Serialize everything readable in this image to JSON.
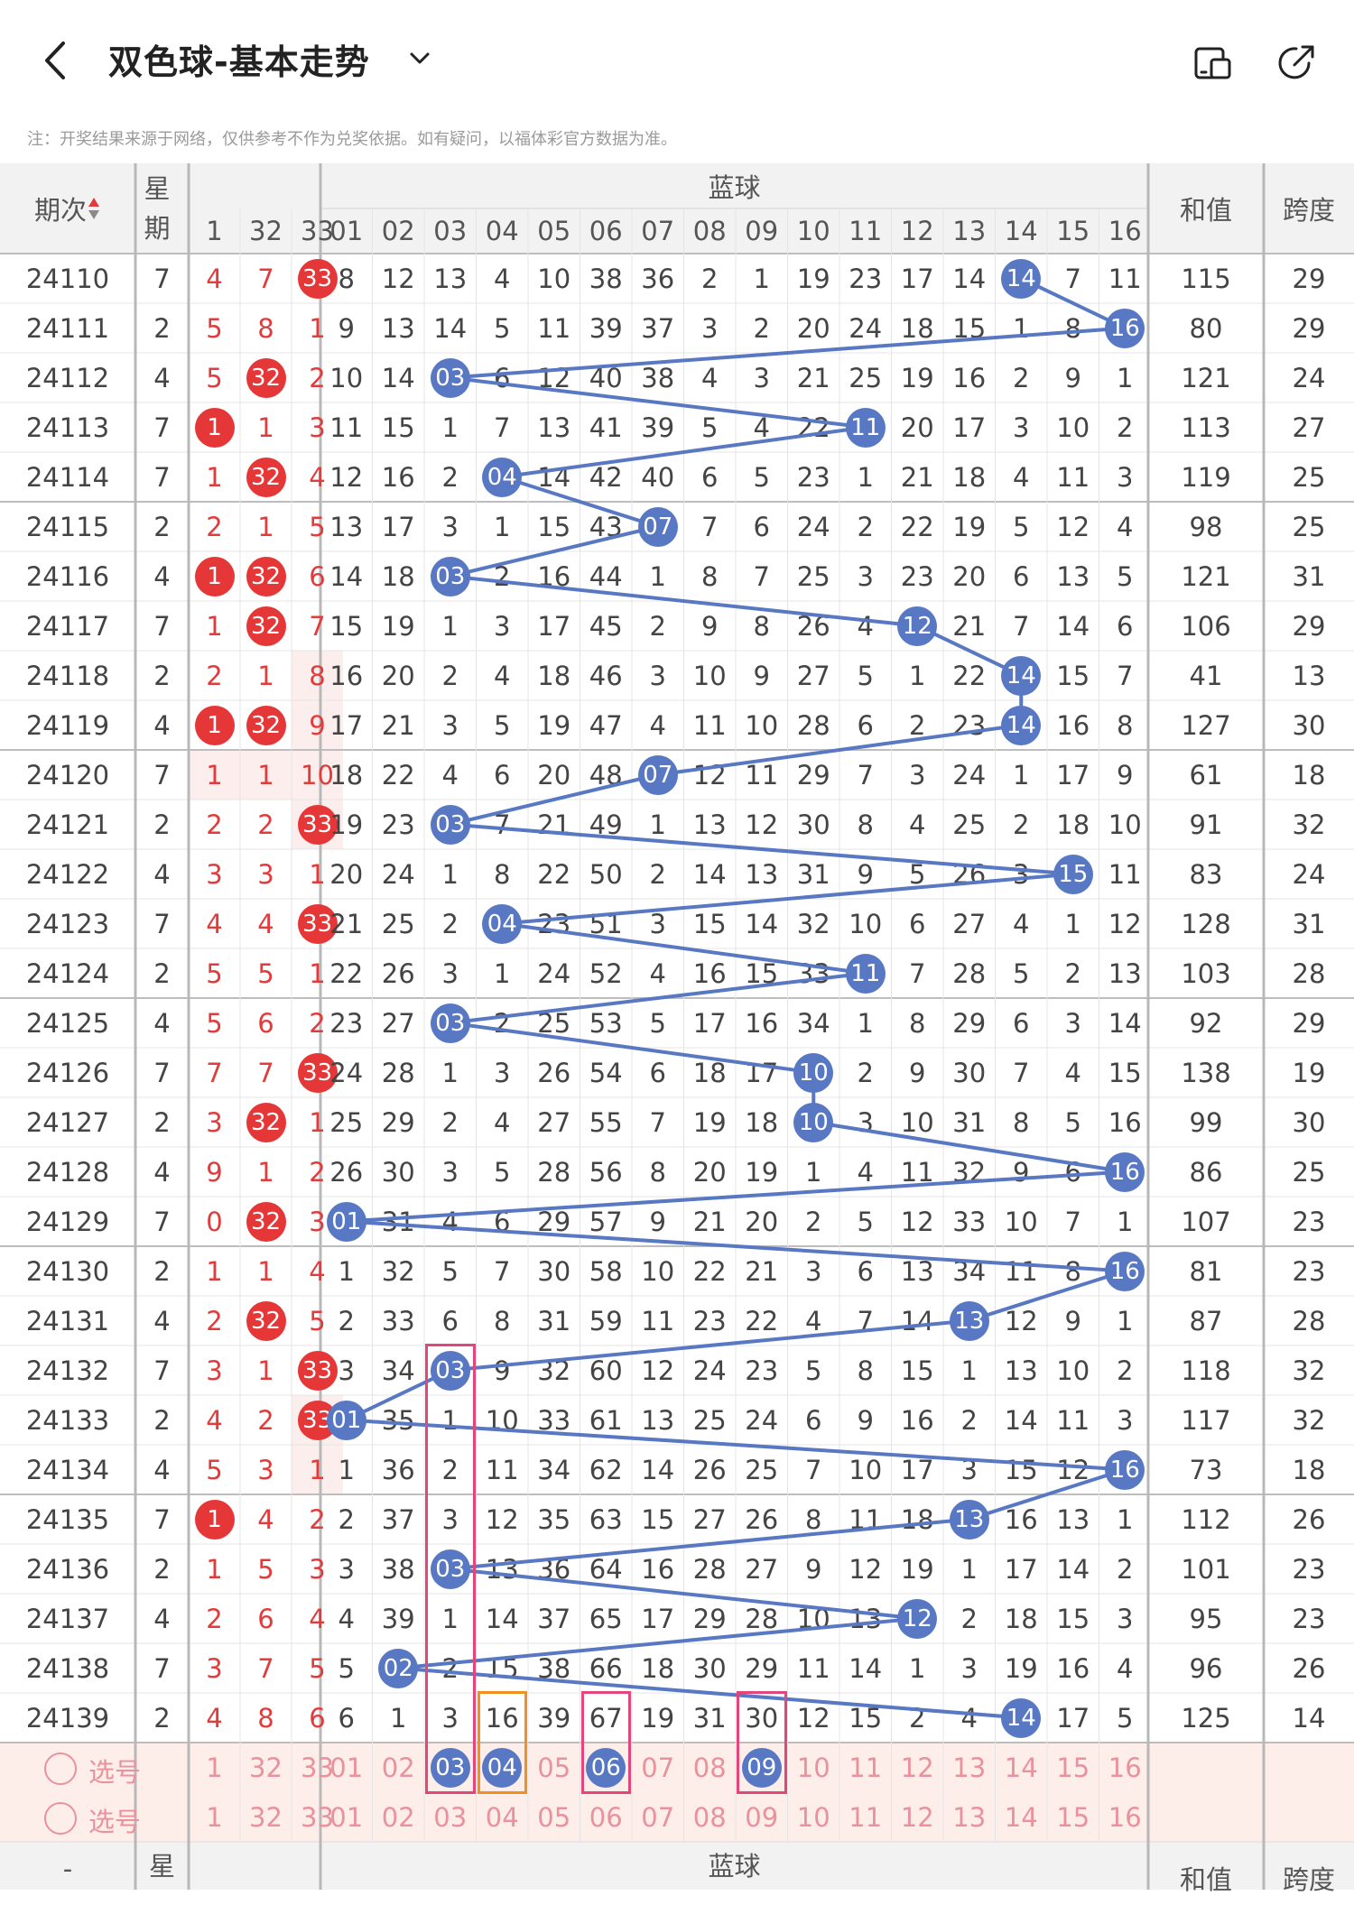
{
  "header": {
    "title": "双色球-基本走势",
    "notice": "注：开奖结果来源于网络，仅供参考不作为兑奖依据。如有疑问，以福体彩官方数据为准。"
  },
  "icons": {
    "back": "back-arrow-icon",
    "dropdown": "chevron-down-icon",
    "layout": "layout-toggle-icon",
    "share": "share-icon"
  },
  "colors": {
    "red_ball": "#e53737",
    "blue_ball": "#5878c4",
    "pink_highlight": "#e2467a",
    "orange_highlight": "#f0901e",
    "selection_row_bg": "#fdeee9"
  },
  "table": {
    "header": {
      "period": "期次",
      "week": "星期",
      "blue_group": "蓝球",
      "sum": "和值",
      "span": "跨度",
      "red_cols": [
        "1",
        "32",
        "33"
      ],
      "blue_cols": [
        "01",
        "02",
        "03",
        "04",
        "05",
        "06",
        "07",
        "08",
        "09",
        "10",
        "11",
        "12",
        "13",
        "14",
        "15",
        "16"
      ]
    },
    "footer_header": {
      "period": "-",
      "week": "星",
      "blue_group": "蓝球",
      "sum": "和值",
      "span": "跨度"
    },
    "rows": [
      {
        "period": "24110",
        "week": "7",
        "red": [
          "4",
          "7",
          "33"
        ],
        "red_hit": [
          false,
          false,
          true
        ],
        "blue": [
          "8",
          "12",
          "13",
          "4",
          "10",
          "38",
          "36",
          "2",
          "1",
          "19",
          "23",
          "17",
          "14",
          "14",
          "7",
          "11"
        ],
        "blue_hit": 14,
        "sum": "115",
        "span": "29"
      },
      {
        "period": "24111",
        "week": "2",
        "red": [
          "5",
          "8",
          "1"
        ],
        "red_hit": [
          false,
          false,
          false
        ],
        "blue": [
          "9",
          "13",
          "14",
          "5",
          "11",
          "39",
          "37",
          "3",
          "2",
          "20",
          "24",
          "18",
          "15",
          "1",
          "8",
          "16"
        ],
        "blue_hit": 16,
        "sum": "80",
        "span": "29"
      },
      {
        "period": "24112",
        "week": "4",
        "red": [
          "5",
          "32",
          "2"
        ],
        "red_hit": [
          false,
          true,
          false
        ],
        "blue": [
          "10",
          "14",
          "03",
          "6",
          "12",
          "40",
          "38",
          "4",
          "3",
          "21",
          "25",
          "19",
          "16",
          "2",
          "9",
          "1"
        ],
        "blue_hit": 3,
        "sum": "121",
        "span": "24"
      },
      {
        "period": "24113",
        "week": "7",
        "red": [
          "1",
          "1",
          "3"
        ],
        "red_hit": [
          true,
          false,
          false
        ],
        "blue": [
          "11",
          "15",
          "1",
          "7",
          "13",
          "41",
          "39",
          "5",
          "4",
          "22",
          "11",
          "20",
          "17",
          "3",
          "10",
          "2"
        ],
        "blue_hit": 11,
        "sum": "113",
        "span": "27"
      },
      {
        "period": "24114",
        "week": "7",
        "red": [
          "1",
          "32",
          "4"
        ],
        "red_hit": [
          false,
          true,
          false
        ],
        "blue": [
          "12",
          "16",
          "2",
          "04",
          "14",
          "42",
          "40",
          "6",
          "5",
          "23",
          "1",
          "21",
          "18",
          "4",
          "11",
          "3"
        ],
        "blue_hit": 4,
        "sum": "119",
        "span": "25"
      },
      {
        "period": "24115",
        "week": "2",
        "red": [
          "2",
          "1",
          "5"
        ],
        "red_hit": [
          false,
          false,
          false
        ],
        "blue": [
          "13",
          "17",
          "3",
          "1",
          "15",
          "43",
          "07",
          "7",
          "6",
          "24",
          "2",
          "22",
          "19",
          "5",
          "12",
          "4"
        ],
        "blue_hit": 7,
        "sum": "98",
        "span": "25"
      },
      {
        "period": "24116",
        "week": "4",
        "red": [
          "1",
          "32",
          "6"
        ],
        "red_hit": [
          true,
          true,
          false
        ],
        "blue": [
          "14",
          "18",
          "03",
          "2",
          "16",
          "44",
          "1",
          "8",
          "7",
          "25",
          "3",
          "23",
          "20",
          "6",
          "13",
          "5"
        ],
        "blue_hit": 3,
        "sum": "121",
        "span": "31"
      },
      {
        "period": "24117",
        "week": "7",
        "red": [
          "1",
          "32",
          "7"
        ],
        "red_hit": [
          false,
          true,
          false
        ],
        "blue": [
          "15",
          "19",
          "1",
          "3",
          "17",
          "45",
          "2",
          "9",
          "8",
          "26",
          "4",
          "12",
          "21",
          "7",
          "14",
          "6"
        ],
        "blue_hit": 12,
        "sum": "106",
        "span": "29"
      },
      {
        "period": "24118",
        "week": "2",
        "red": [
          "2",
          "1",
          "8"
        ],
        "red_hit": [
          false,
          false,
          false
        ],
        "blue": [
          "16",
          "20",
          "2",
          "4",
          "18",
          "46",
          "3",
          "10",
          "9",
          "27",
          "5",
          "1",
          "22",
          "14",
          "15",
          "7"
        ],
        "blue_hit": 14,
        "sum": "41",
        "span": "13"
      },
      {
        "period": "24119",
        "week": "4",
        "red": [
          "1",
          "32",
          "9"
        ],
        "red_hit": [
          true,
          true,
          false
        ],
        "blue": [
          "17",
          "21",
          "3",
          "5",
          "19",
          "47",
          "4",
          "11",
          "10",
          "28",
          "6",
          "2",
          "23",
          "14",
          "16",
          "8"
        ],
        "blue_hit": 14,
        "sum": "127",
        "span": "30"
      },
      {
        "period": "24120",
        "week": "7",
        "red": [
          "1",
          "1",
          "10"
        ],
        "red_hit": [
          false,
          false,
          false
        ],
        "blue": [
          "18",
          "22",
          "4",
          "6",
          "20",
          "48",
          "07",
          "12",
          "11",
          "29",
          "7",
          "3",
          "24",
          "1",
          "17",
          "9"
        ],
        "blue_hit": 7,
        "sum": "61",
        "span": "18"
      },
      {
        "period": "24121",
        "week": "2",
        "red": [
          "2",
          "2",
          "33"
        ],
        "red_hit": [
          false,
          false,
          true
        ],
        "blue": [
          "19",
          "23",
          "03",
          "7",
          "21",
          "49",
          "1",
          "13",
          "12",
          "30",
          "8",
          "4",
          "25",
          "2",
          "18",
          "10"
        ],
        "blue_hit": 3,
        "sum": "91",
        "span": "32"
      },
      {
        "period": "24122",
        "week": "4",
        "red": [
          "3",
          "3",
          "1"
        ],
        "red_hit": [
          false,
          false,
          false
        ],
        "blue": [
          "20",
          "24",
          "1",
          "8",
          "22",
          "50",
          "2",
          "14",
          "13",
          "31",
          "9",
          "5",
          "26",
          "3",
          "15",
          "11"
        ],
        "blue_hit": 15,
        "sum": "83",
        "span": "24"
      },
      {
        "period": "24123",
        "week": "7",
        "red": [
          "4",
          "4",
          "33"
        ],
        "red_hit": [
          false,
          false,
          true
        ],
        "blue": [
          "21",
          "25",
          "2",
          "04",
          "23",
          "51",
          "3",
          "15",
          "14",
          "32",
          "10",
          "6",
          "27",
          "4",
          "1",
          "12"
        ],
        "blue_hit": 4,
        "sum": "128",
        "span": "31"
      },
      {
        "period": "24124",
        "week": "2",
        "red": [
          "5",
          "5",
          "1"
        ],
        "red_hit": [
          false,
          false,
          false
        ],
        "blue": [
          "22",
          "26",
          "3",
          "1",
          "24",
          "52",
          "4",
          "16",
          "15",
          "33",
          "11",
          "7",
          "28",
          "5",
          "2",
          "13"
        ],
        "blue_hit": 11,
        "sum": "103",
        "span": "28"
      },
      {
        "period": "24125",
        "week": "4",
        "red": [
          "5",
          "6",
          "2"
        ],
        "red_hit": [
          false,
          false,
          false
        ],
        "blue": [
          "23",
          "27",
          "03",
          "2",
          "25",
          "53",
          "5",
          "17",
          "16",
          "34",
          "1",
          "8",
          "29",
          "6",
          "3",
          "14"
        ],
        "blue_hit": 3,
        "sum": "92",
        "span": "29"
      },
      {
        "period": "24126",
        "week": "7",
        "red": [
          "7",
          "7",
          "33"
        ],
        "red_hit": [
          false,
          false,
          true
        ],
        "blue": [
          "24",
          "28",
          "1",
          "3",
          "26",
          "54",
          "6",
          "18",
          "17",
          "10",
          "2",
          "9",
          "30",
          "7",
          "4",
          "15"
        ],
        "blue_hit": 10,
        "sum": "138",
        "span": "19"
      },
      {
        "period": "24127",
        "week": "2",
        "red": [
          "3",
          "32",
          "1"
        ],
        "red_hit": [
          false,
          true,
          false
        ],
        "blue": [
          "25",
          "29",
          "2",
          "4",
          "27",
          "55",
          "7",
          "19",
          "18",
          "10",
          "3",
          "10",
          "31",
          "8",
          "5",
          "16"
        ],
        "blue_hit": 10,
        "sum": "99",
        "span": "30"
      },
      {
        "period": "24128",
        "week": "4",
        "red": [
          "9",
          "1",
          "2"
        ],
        "red_hit": [
          false,
          false,
          false
        ],
        "blue": [
          "26",
          "30",
          "3",
          "5",
          "28",
          "56",
          "8",
          "20",
          "19",
          "1",
          "4",
          "11",
          "32",
          "9",
          "6",
          "16"
        ],
        "blue_hit": 16,
        "sum": "86",
        "span": "25"
      },
      {
        "period": "24129",
        "week": "7",
        "red": [
          "0",
          "32",
          "3"
        ],
        "red_hit": [
          false,
          true,
          false
        ],
        "blue": [
          "01",
          "31",
          "4",
          "6",
          "29",
          "57",
          "9",
          "21",
          "20",
          "2",
          "5",
          "12",
          "33",
          "10",
          "7",
          "1"
        ],
        "blue_hit": 1,
        "sum": "107",
        "span": "23"
      },
      {
        "period": "24130",
        "week": "2",
        "red": [
          "1",
          "1",
          "4"
        ],
        "red_hit": [
          false,
          false,
          false
        ],
        "blue": [
          "1",
          "32",
          "5",
          "7",
          "30",
          "58",
          "10",
          "22",
          "21",
          "3",
          "6",
          "13",
          "34",
          "11",
          "8",
          "16"
        ],
        "blue_hit": 16,
        "sum": "81",
        "span": "23"
      },
      {
        "period": "24131",
        "week": "4",
        "red": [
          "2",
          "32",
          "5"
        ],
        "red_hit": [
          false,
          true,
          false
        ],
        "blue": [
          "2",
          "33",
          "6",
          "8",
          "31",
          "59",
          "11",
          "23",
          "22",
          "4",
          "7",
          "14",
          "13",
          "12",
          "9",
          "1"
        ],
        "blue_hit": 13,
        "sum": "87",
        "span": "28"
      },
      {
        "period": "24132",
        "week": "7",
        "red": [
          "3",
          "1",
          "33"
        ],
        "red_hit": [
          false,
          false,
          true
        ],
        "blue": [
          "3",
          "34",
          "03",
          "9",
          "32",
          "60",
          "12",
          "24",
          "23",
          "5",
          "8",
          "15",
          "1",
          "13",
          "10",
          "2"
        ],
        "blue_hit": 3,
        "sum": "118",
        "span": "32"
      },
      {
        "period": "24133",
        "week": "2",
        "red": [
          "4",
          "2",
          "33"
        ],
        "red_hit": [
          false,
          false,
          true
        ],
        "blue": [
          "01",
          "35",
          "1",
          "10",
          "33",
          "61",
          "13",
          "25",
          "24",
          "6",
          "9",
          "16",
          "2",
          "14",
          "11",
          "3"
        ],
        "blue_hit": 1,
        "sum": "117",
        "span": "32"
      },
      {
        "period": "24134",
        "week": "4",
        "red": [
          "5",
          "3",
          "1"
        ],
        "red_hit": [
          false,
          false,
          false
        ],
        "blue": [
          "1",
          "36",
          "2",
          "11",
          "34",
          "62",
          "14",
          "26",
          "25",
          "7",
          "10",
          "17",
          "3",
          "15",
          "12",
          "16"
        ],
        "blue_hit": 16,
        "sum": "73",
        "span": "18"
      },
      {
        "period": "24135",
        "week": "7",
        "red": [
          "1",
          "4",
          "2"
        ],
        "red_hit": [
          true,
          false,
          false
        ],
        "blue": [
          "2",
          "37",
          "3",
          "12",
          "35",
          "63",
          "15",
          "27",
          "26",
          "8",
          "11",
          "18",
          "13",
          "16",
          "13",
          "1"
        ],
        "blue_hit": 13,
        "sum": "112",
        "span": "26"
      },
      {
        "period": "24136",
        "week": "2",
        "red": [
          "1",
          "5",
          "3"
        ],
        "red_hit": [
          false,
          false,
          false
        ],
        "blue": [
          "3",
          "38",
          "03",
          "13",
          "36",
          "64",
          "16",
          "28",
          "27",
          "9",
          "12",
          "19",
          "1",
          "17",
          "14",
          "2"
        ],
        "blue_hit": 3,
        "sum": "101",
        "span": "23"
      },
      {
        "period": "24137",
        "week": "4",
        "red": [
          "2",
          "6",
          "4"
        ],
        "red_hit": [
          false,
          false,
          false
        ],
        "blue": [
          "4",
          "39",
          "1",
          "14",
          "37",
          "65",
          "17",
          "29",
          "28",
          "10",
          "13",
          "12",
          "2",
          "18",
          "15",
          "3"
        ],
        "blue_hit": 12,
        "sum": "95",
        "span": "23"
      },
      {
        "period": "24138",
        "week": "7",
        "red": [
          "3",
          "7",
          "5"
        ],
        "red_hit": [
          false,
          false,
          false
        ],
        "blue": [
          "5",
          "02",
          "2",
          "15",
          "38",
          "66",
          "18",
          "30",
          "29",
          "11",
          "14",
          "1",
          "3",
          "19",
          "16",
          "4"
        ],
        "blue_hit": 2,
        "sum": "96",
        "span": "26"
      },
      {
        "period": "24139",
        "week": "2",
        "red": [
          "4",
          "8",
          "6"
        ],
        "red_hit": [
          false,
          false,
          false
        ],
        "blue": [
          "6",
          "1",
          "3",
          "16",
          "39",
          "67",
          "19",
          "31",
          "30",
          "12",
          "15",
          "2",
          "4",
          "14",
          "17",
          "5"
        ],
        "blue_hit": 14,
        "sum": "125",
        "span": "14"
      }
    ],
    "selection_rows": [
      {
        "label": "选号",
        "red": [
          "1",
          "32",
          "33"
        ],
        "blue": [
          "01",
          "02",
          "03",
          "04",
          "05",
          "06",
          "07",
          "08",
          "09",
          "10",
          "11",
          "12",
          "13",
          "14",
          "15",
          "16"
        ],
        "selected_blue": [
          3,
          4,
          6,
          9
        ]
      },
      {
        "label": "选号",
        "red": [
          "1",
          "32",
          "33"
        ],
        "blue": [
          "01",
          "02",
          "03",
          "04",
          "05",
          "06",
          "07",
          "08",
          "09",
          "10",
          "11",
          "12",
          "13",
          "14",
          "15",
          "16"
        ],
        "selected_blue": []
      }
    ]
  }
}
